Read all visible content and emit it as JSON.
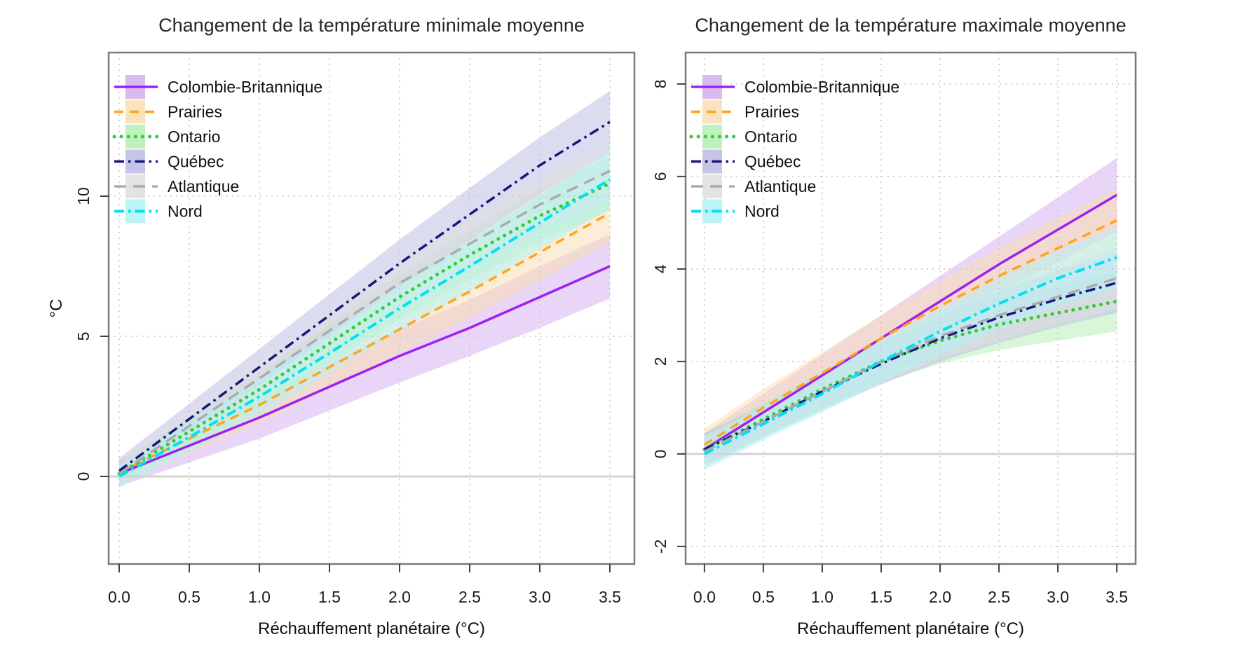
{
  "page": {
    "background": "#ffffff"
  },
  "colors": {
    "grid": "#c8c8c8",
    "axis_box": "#7a7a7a",
    "tick": "#404040",
    "zero_line": "#d3d3d3",
    "title_text": "#262626",
    "label_text": "#1a1a1a"
  },
  "chart_data": [
    {
      "type": "line",
      "title": "Changement de la température minimale moyenne",
      "xlabel": "Réchauffement planétaire (°C)",
      "ylabel": "°C",
      "legend_position": "top-left",
      "grid": true,
      "zero_line": true,
      "x": [
        0,
        0.5,
        1,
        1.5,
        2,
        2.5,
        3,
        3.5
      ],
      "xtick_labels": [
        "0.0",
        "0.5",
        "1.0",
        "1.5",
        "2.0",
        "2.5",
        "3.0",
        "3.5"
      ],
      "xlim": [
        -0.075,
        3.675
      ],
      "ytick_values": [
        0,
        5,
        10
      ],
      "ytick_labels": [
        "0",
        "5",
        "10"
      ],
      "ylim": [
        -3.125,
        15.125
      ],
      "series": [
        {
          "key": "colombie-britannique",
          "name": "Colombie-Britannique",
          "color": "#A020F0",
          "band_color": "#D5B3F0",
          "linestyle": "solid",
          "values": [
            0.1,
            1.1,
            2.1,
            3.2,
            4.3,
            5.3,
            6.4,
            7.5
          ],
          "band_low": [
            -0.35,
            0.5,
            1.35,
            2.35,
            3.35,
            4.3,
            5.3,
            6.35
          ],
          "band_high": [
            0.55,
            1.7,
            2.85,
            4.05,
            5.25,
            6.3,
            7.5,
            8.65
          ]
        },
        {
          "key": "prairies",
          "name": "Prairies",
          "color": "#FFA41C",
          "band_color": "#FADFB5",
          "linestyle": "dashed",
          "values": [
            0.15,
            1.35,
            2.55,
            3.9,
            5.25,
            6.6,
            8.0,
            9.4
          ],
          "band_low": [
            -0.3,
            0.8,
            1.9,
            3.15,
            4.4,
            5.65,
            7.0,
            8.35
          ],
          "band_high": [
            0.6,
            1.9,
            3.2,
            4.65,
            6.1,
            7.55,
            9.0,
            10.45
          ]
        },
        {
          "key": "ontario",
          "name": "Ontario",
          "color": "#33CC33",
          "band_color": "#B8F0B8",
          "linestyle": "dotted",
          "values": [
            0.1,
            1.6,
            3.1,
            4.75,
            6.4,
            7.9,
            9.3,
            10.45
          ],
          "band_low": [
            -0.3,
            1.1,
            2.5,
            4.05,
            5.6,
            7.0,
            8.35,
            9.5
          ],
          "band_high": [
            0.5,
            2.1,
            3.7,
            5.45,
            7.2,
            8.8,
            10.25,
            11.4
          ]
        },
        {
          "key": "quebec",
          "name": "Québec",
          "color": "#16167F",
          "band_color": "#BFBFE6",
          "linestyle": "dash-dot",
          "values": [
            0.2,
            2.05,
            3.9,
            5.75,
            7.6,
            9.35,
            11.1,
            12.65
          ],
          "band_low": [
            -0.25,
            1.5,
            3.25,
            5.0,
            6.75,
            8.4,
            10.1,
            11.55
          ],
          "band_high": [
            0.65,
            2.6,
            4.55,
            6.5,
            8.45,
            10.3,
            12.1,
            13.75
          ]
        },
        {
          "key": "atlantique",
          "name": "Atlantique",
          "color": "#ABABAB",
          "band_color": "#E0E0E0",
          "linestyle": "long-dash",
          "values": [
            0.1,
            1.8,
            3.5,
            5.2,
            6.9,
            8.3,
            9.7,
            10.9
          ],
          "band_low": [
            -0.3,
            1.25,
            2.85,
            4.5,
            6.1,
            7.4,
            8.75,
            9.85
          ],
          "band_high": [
            0.5,
            2.35,
            4.15,
            5.9,
            7.7,
            9.2,
            10.65,
            11.95
          ]
        },
        {
          "key": "nord",
          "name": "Nord",
          "color": "#00E0F0",
          "band_color": "#B5F2F5",
          "linestyle": "dash-dot",
          "values": [
            0.0,
            1.4,
            2.85,
            4.4,
            6.0,
            7.5,
            9.05,
            10.6
          ],
          "band_low": [
            -0.4,
            0.85,
            2.2,
            3.7,
            5.2,
            6.6,
            8.1,
            9.55
          ],
          "band_high": [
            0.4,
            1.95,
            3.5,
            5.1,
            6.8,
            8.4,
            10.0,
            11.65
          ]
        }
      ]
    },
    {
      "type": "line",
      "title": "Changement de la température maximale moyenne",
      "xlabel": "Réchauffement planétaire (°C)",
      "ylabel": "",
      "legend_position": "top-left",
      "grid": true,
      "zero_line": true,
      "x": [
        0,
        0.5,
        1,
        1.5,
        2,
        2.5,
        3,
        3.5
      ],
      "xtick_labels": [
        "0.0",
        "0.5",
        "1.0",
        "1.5",
        "2.0",
        "2.5",
        "3.0",
        "3.5"
      ],
      "xlim": [
        -0.16,
        3.66
      ],
      "ytick_values": [
        -2,
        0,
        2,
        4,
        6,
        8
      ],
      "ytick_labels": [
        "-2",
        "0",
        "2",
        "4",
        "6",
        "8"
      ],
      "ylim": [
        -2.38,
        8.68
      ],
      "series": [
        {
          "key": "colombie-britannique",
          "name": "Colombie-Britannique",
          "color": "#A020F0",
          "band_color": "#D5B3F0",
          "linestyle": "solid",
          "values": [
            0.1,
            0.9,
            1.7,
            2.5,
            3.3,
            4.1,
            4.85,
            5.6
          ],
          "band_low": [
            -0.25,
            0.5,
            1.25,
            2.0,
            2.75,
            3.5,
            4.15,
            4.8
          ],
          "band_high": [
            0.45,
            1.3,
            2.15,
            3.0,
            3.85,
            4.7,
            5.55,
            6.4
          ]
        },
        {
          "key": "prairies",
          "name": "Prairies",
          "color": "#FFA41C",
          "band_color": "#FADFB5",
          "linestyle": "dashed",
          "values": [
            0.2,
            1.0,
            1.75,
            2.5,
            3.2,
            3.85,
            4.45,
            5.05
          ],
          "band_low": [
            -0.15,
            0.6,
            1.3,
            2.0,
            2.65,
            3.25,
            3.8,
            4.35
          ],
          "band_high": [
            0.55,
            1.4,
            2.2,
            3.0,
            3.75,
            4.45,
            5.1,
            5.75
          ]
        },
        {
          "key": "ontario",
          "name": "Ontario",
          "color": "#33CC33",
          "band_color": "#B8F0B8",
          "linestyle": "dotted",
          "values": [
            0.1,
            0.75,
            1.4,
            2.0,
            2.45,
            2.8,
            3.05,
            3.3
          ],
          "band_low": [
            -0.25,
            0.4,
            1.0,
            1.55,
            1.95,
            2.25,
            2.45,
            2.65
          ],
          "band_high": [
            0.45,
            1.1,
            1.8,
            2.45,
            2.95,
            3.35,
            3.65,
            3.95
          ]
        },
        {
          "key": "quebec",
          "name": "Québec",
          "color": "#16167F",
          "band_color": "#BFBFE6",
          "linestyle": "dash-dot",
          "values": [
            0.1,
            0.7,
            1.35,
            1.95,
            2.5,
            2.95,
            3.35,
            3.7
          ],
          "band_low": [
            -0.25,
            0.35,
            0.95,
            1.5,
            2.0,
            2.4,
            2.75,
            3.05
          ],
          "band_high": [
            0.45,
            1.05,
            1.75,
            2.4,
            3.0,
            3.5,
            3.95,
            4.35
          ]
        },
        {
          "key": "atlantique",
          "name": "Atlantique",
          "color": "#ABABAB",
          "band_color": "#E0E0E0",
          "linestyle": "long-dash",
          "values": [
            0.05,
            0.7,
            1.35,
            2.0,
            2.55,
            3.0,
            3.4,
            3.8
          ],
          "band_low": [
            -0.3,
            0.35,
            0.95,
            1.55,
            2.05,
            2.45,
            2.8,
            3.15
          ],
          "band_high": [
            0.4,
            1.05,
            1.75,
            2.45,
            3.05,
            3.55,
            4.0,
            4.45
          ]
        },
        {
          "key": "nord",
          "name": "Nord",
          "color": "#00E0F0",
          "band_color": "#B5F2F5",
          "linestyle": "dash-dot",
          "values": [
            0.0,
            0.65,
            1.3,
            2.0,
            2.65,
            3.25,
            3.8,
            4.25
          ],
          "band_low": [
            -0.35,
            0.3,
            0.9,
            1.55,
            2.15,
            2.7,
            3.2,
            3.6
          ],
          "band_high": [
            0.35,
            1.0,
            1.7,
            2.45,
            3.15,
            3.8,
            4.4,
            4.9
          ]
        }
      ]
    }
  ]
}
